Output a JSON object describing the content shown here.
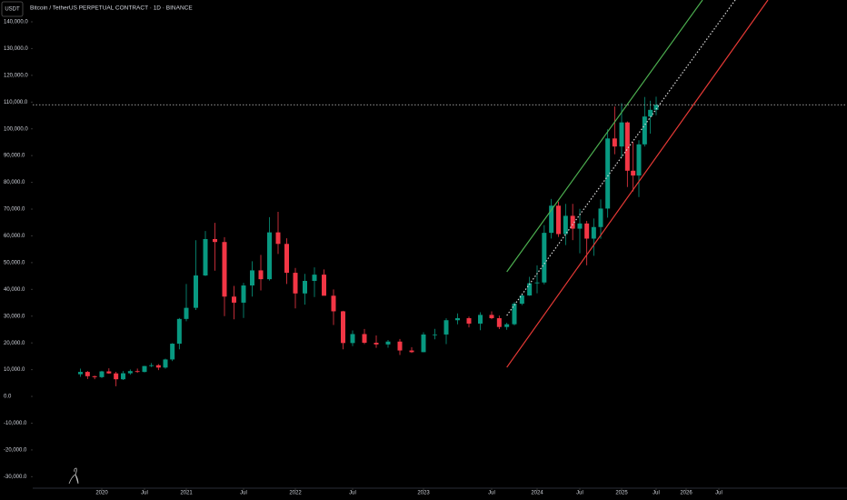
{
  "chart_data": {
    "type": "candlestick",
    "title": "Bitcoin / TetherUS PERPETUAL CONTRACT · 1D · BINANCE",
    "currency": "USDT",
    "up_color": "#089981",
    "down_color": "#f23645",
    "x": [
      "2019-10",
      "2019-11",
      "2019-12",
      "2020-01",
      "2020-02",
      "2020-03",
      "2020-04",
      "2020-05",
      "2020-06",
      "2020-07",
      "2020-08",
      "2020-09",
      "2020-10",
      "2020-11",
      "2020-12",
      "2021-01",
      "2021-02",
      "2021-03",
      "2021-04",
      "2021-05",
      "2021-06",
      "2021-07",
      "2021-08",
      "2021-09",
      "2021-10",
      "2021-11",
      "2021-12",
      "2022-01",
      "2022-02",
      "2022-03",
      "2022-04",
      "2022-05",
      "2022-06",
      "2022-07",
      "2022-08",
      "2022-09",
      "2022-10",
      "2022-11",
      "2022-12",
      "2023-01",
      "2023-02",
      "2023-03",
      "2023-04",
      "2023-05",
      "2023-06",
      "2023-07",
      "2023-08",
      "2023-09",
      "2023-10",
      "2023-11",
      "2023-12",
      "2024-01",
      "2024-02",
      "2024-03",
      "2024-04",
      "2024-05",
      "2024-06",
      "2024-07",
      "2024-08",
      "2024-09",
      "2024-10",
      "2024-11",
      "2024-12",
      "2025-01",
      "2025-02",
      "2025-03",
      "2025-04",
      "2025-05",
      "2025-06",
      "2025-07"
    ],
    "open": [
      8290,
      9150,
      7550,
      7200,
      9350,
      8600,
      6400,
      8650,
      9450,
      9140,
      11350,
      11650,
      10780,
      13800,
      19700,
      28950,
      33100,
      45200,
      58800,
      57700,
      37300,
      35040,
      41460,
      47100,
      43800,
      61300,
      57000,
      46200,
      38480,
      43170,
      45510,
      37630,
      31800,
      19940,
      23300,
      20050,
      19420,
      20490,
      17160,
      16540,
      23130,
      23140,
      28470,
      29230,
      27210,
      30470,
      29230,
      25940,
      26970,
      34640,
      37720,
      42280,
      42580,
      61130,
      71280,
      60670,
      67490,
      62680,
      64630,
      58970,
      63300,
      70200,
      96400,
      93400,
      102400,
      84350,
      82550,
      94200,
      104600,
      107100
    ],
    "high": [
      10370,
      9500,
      7750,
      9580,
      10500,
      9200,
      9470,
      10070,
      10400,
      11450,
      12480,
      12080,
      14100,
      19900,
      29300,
      42000,
      58350,
      61800,
      64850,
      59500,
      41300,
      42450,
      50500,
      52900,
      67000,
      69000,
      59100,
      47990,
      45800,
      48200,
      47450,
      40000,
      31990,
      24650,
      25200,
      22800,
      21100,
      21480,
      18390,
      23950,
      25250,
      29200,
      31000,
      29850,
      31430,
      31800,
      30200,
      27500,
      35280,
      38450,
      44700,
      48970,
      64000,
      73800,
      72800,
      71950,
      71960,
      70080,
      65600,
      66500,
      73600,
      99800,
      108350,
      109600,
      102750,
      95000,
      95750,
      111900,
      110500,
      112000
    ],
    "low": [
      7300,
      6500,
      6430,
      6870,
      8450,
      3800,
      6150,
      8100,
      8850,
      8980,
      10950,
      9820,
      10380,
      13200,
      17600,
      28100,
      32300,
      45000,
      47000,
      30000,
      28800,
      29300,
      37300,
      39600,
      43300,
      53250,
      42000,
      32900,
      34300,
      37150,
      37700,
      26700,
      17600,
      18800,
      19550,
      18150,
      18200,
      15480,
      16250,
      16500,
      21350,
      19550,
      26940,
      25800,
      24750,
      28860,
      25150,
      24900,
      26550,
      34100,
      37600,
      38550,
      41880,
      59000,
      59600,
      56550,
      58400,
      53500,
      49000,
      52550,
      58900,
      66800,
      90500,
      89250,
      78250,
      76600,
      74500,
      93400,
      98200,
      105100
    ],
    "close": [
      9150,
      7550,
      7200,
      9350,
      8600,
      6400,
      8650,
      9450,
      9140,
      11350,
      11650,
      10780,
      13800,
      19700,
      28950,
      33100,
      45200,
      58800,
      57700,
      37300,
      35040,
      41460,
      47100,
      43800,
      61300,
      57000,
      46200,
      38480,
      43170,
      45510,
      37630,
      31800,
      19940,
      23300,
      20050,
      19420,
      20490,
      17160,
      16540,
      23130,
      23140,
      28470,
      29230,
      27210,
      30470,
      29230,
      25940,
      26970,
      34640,
      37720,
      42280,
      42580,
      61130,
      71280,
      60670,
      67490,
      62680,
      64630,
      58970,
      63300,
      70200,
      96400,
      93400,
      102400,
      84350,
      82550,
      94200,
      104600,
      107100,
      109000
    ],
    "ylim": [
      -34300,
      148150
    ],
    "yticks": [
      {
        "value": 140000,
        "label": "140,000.0"
      },
      {
        "value": 130000,
        "label": "130,000.0"
      },
      {
        "value": 120000,
        "label": "120,000.0"
      },
      {
        "value": 110000,
        "label": "110,000.0"
      },
      {
        "value": 100000,
        "label": "100,000.0"
      },
      {
        "value": 90000,
        "label": "90,000.0"
      },
      {
        "value": 80000,
        "label": "80,000.0"
      },
      {
        "value": 70000,
        "label": "70,000.0"
      },
      {
        "value": 60000,
        "label": "60,000.0"
      },
      {
        "value": 50000,
        "label": "50,000.0"
      },
      {
        "value": 40000,
        "label": "40,000.0"
      },
      {
        "value": 30000,
        "label": "30,000.0"
      },
      {
        "value": 20000,
        "label": "20,000.0"
      },
      {
        "value": 10000,
        "label": "10,000.0"
      },
      {
        "value": 0,
        "label": "0.0"
      },
      {
        "value": -10000,
        "label": "-10,000.0"
      },
      {
        "value": -20000,
        "label": "-20,000.0"
      },
      {
        "value": -30000,
        "label": "-30,000.0"
      }
    ],
    "xticks": [
      {
        "value": "2020-01",
        "label": "2020"
      },
      {
        "value": "2020-07",
        "label": "Jul"
      },
      {
        "value": "2021-01",
        "label": "2021"
      },
      {
        "value": "2021-07",
        "label": "Jul"
      },
      {
        "value": "2022-01",
        "label": "2022"
      },
      {
        "value": "2022-07",
        "label": "Jul"
      },
      {
        "value": "2023-01",
        "label": "2023"
      },
      {
        "value": "2023-07",
        "label": "Jul"
      },
      {
        "value": "2024-01",
        "label": "2024"
      },
      {
        "value": "2024-07",
        "label": "Jul"
      },
      {
        "value": "2025-01",
        "label": "2025"
      },
      {
        "value": "2025-07",
        "label": "Jul"
      },
      {
        "value": "2026-01",
        "label": "2026"
      },
      {
        "value": "2026-07",
        "label": "Jul"
      }
    ],
    "price_line": {
      "value": 109000,
      "color": "#c8c8c8"
    },
    "lines": [
      {
        "color": "#4caf50",
        "dotted": false,
        "x": [
          "2023-09",
          "2026-04"
        ],
        "values": [
          46550,
          148150
        ]
      },
      {
        "color": "#d8d8d8",
        "dotted": true,
        "x": [
          "2023-09",
          "2026-10"
        ],
        "values": [
          30240,
          148150
        ]
      },
      {
        "color": "#e53935",
        "dotted": false,
        "x": [
          "2023-09",
          "2027-04"
        ],
        "values": [
          10870,
          148150
        ]
      }
    ]
  }
}
